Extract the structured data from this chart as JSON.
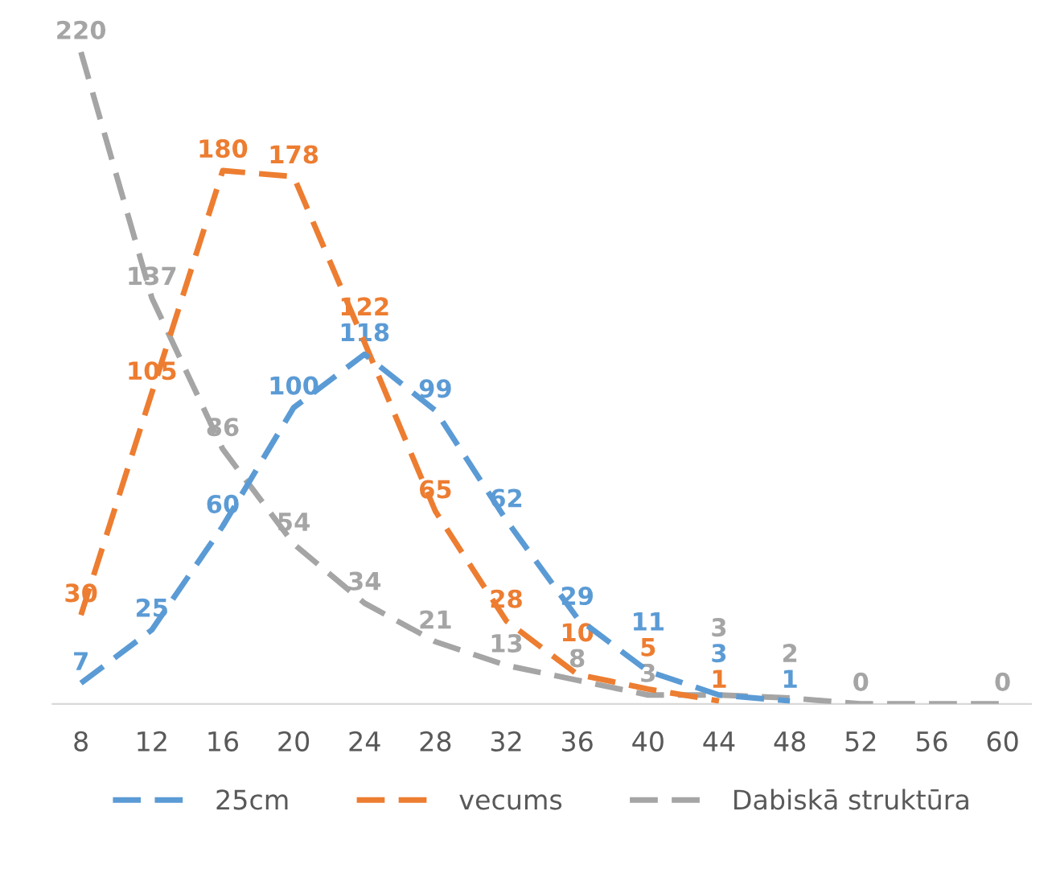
{
  "chart_data": {
    "type": "line",
    "categories": [
      "8",
      "12",
      "16",
      "20",
      "24",
      "28",
      "32",
      "36",
      "40",
      "44",
      "48",
      "52",
      "56",
      "60"
    ],
    "series": [
      {
        "name": "25cm",
        "color": "#5b9bd5",
        "values": [
          7,
          25,
          60,
          100,
          118,
          99,
          62,
          29,
          11,
          3,
          1,
          null,
          null,
          null
        ]
      },
      {
        "name": "vecums",
        "color": "#ed7d31",
        "values": [
          30,
          105,
          180,
          178,
          122,
          65,
          28,
          10,
          5,
          1,
          null,
          null,
          null,
          null
        ]
      },
      {
        "name": "Dabiskā struktūra",
        "color": "#a5a5a5",
        "values": [
          220,
          137,
          86,
          54,
          34,
          21,
          13,
          8,
          3,
          3,
          2,
          0,
          0,
          0
        ],
        "value_labels": [
          "220",
          "137",
          "86",
          "54",
          "34",
          "21",
          "13",
          "8",
          "3",
          "3",
          "2",
          "0",
          null,
          "0"
        ]
      }
    ],
    "data_labels": true,
    "legend": "bottom",
    "grid": false,
    "line_style": "dashed",
    "tick_labels": "x"
  }
}
